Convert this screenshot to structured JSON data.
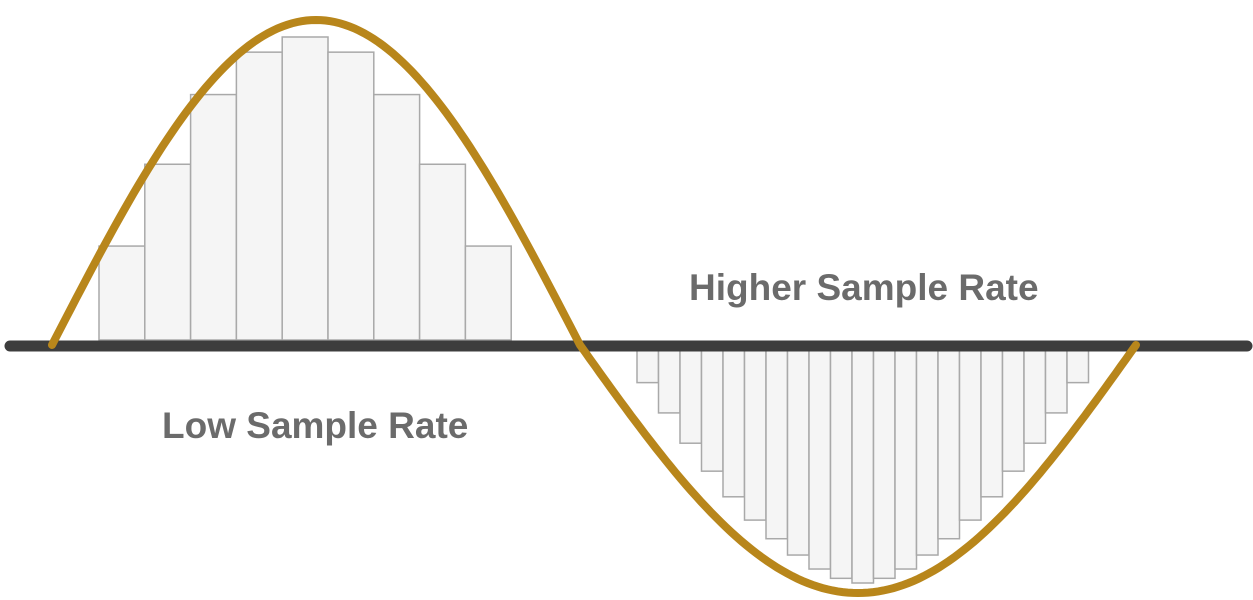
{
  "labels": {
    "low_rate": "Low Sample Rate",
    "high_rate": "Higher Sample Rate"
  },
  "colors": {
    "background": "#ffffff",
    "baseline": "#3d3d3d",
    "wave": "#b8861b",
    "sample_fill": "#f5f5f5",
    "sample_stroke": "#a9a9a9",
    "label": "#6b6b6b"
  },
  "chart_data": {
    "type": "bar",
    "waveform": "sine",
    "cycles": 1,
    "series": [
      {
        "half_cycle": "positive",
        "sample_count": 9,
        "values": [
          0.31,
          0.58,
          0.81,
          0.95,
          1.0,
          0.95,
          0.81,
          0.58,
          0.31
        ]
      },
      {
        "half_cycle": "negative",
        "sample_count": 21,
        "values": [
          -0.14,
          -0.27,
          -0.4,
          -0.52,
          -0.63,
          -0.73,
          -0.81,
          -0.88,
          -0.94,
          -0.98,
          -1.0,
          -0.98,
          -0.94,
          -0.88,
          -0.81,
          -0.73,
          -0.63,
          -0.52,
          -0.4,
          -0.27,
          -0.14
        ]
      }
    ],
    "ylim": [
      -1,
      1
    ]
  }
}
